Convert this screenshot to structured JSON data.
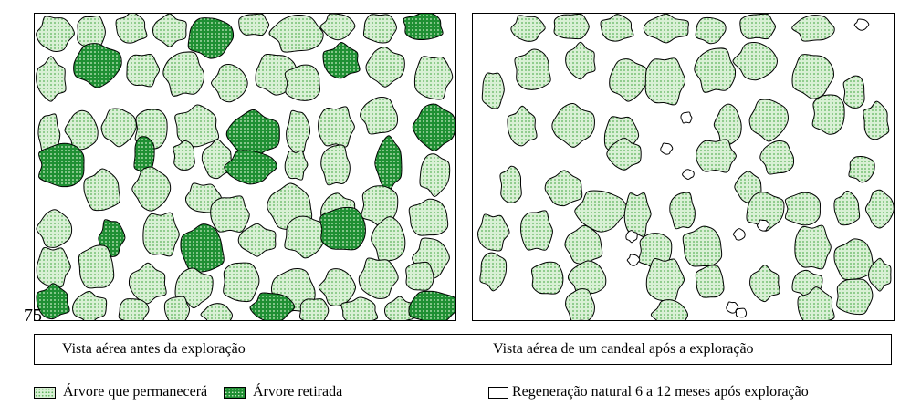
{
  "colors": {
    "keep_fill": "#d9f0d5",
    "keep_dot": "#5cb25a",
    "removed_fill": "#1f8f33",
    "removed_dot": "#d8f2d0",
    "outline": "#000000"
  },
  "icons": {
    "tree_kept": "light-green-dotted-crown",
    "tree_removed": "dark-green-dotted-crown",
    "regeneration": "small-white-outline-crown"
  },
  "artifact_text": "75",
  "captions": {
    "before": "Vista aérea antes da exploração",
    "after": "Vista aérea de um candeal após a exploração"
  },
  "legend": {
    "kept": "Árvore que permanecerá",
    "removed": "Árvore retirada",
    "regeneration": "Regeneração natural 6 a 12 meses após exploração"
  }
}
